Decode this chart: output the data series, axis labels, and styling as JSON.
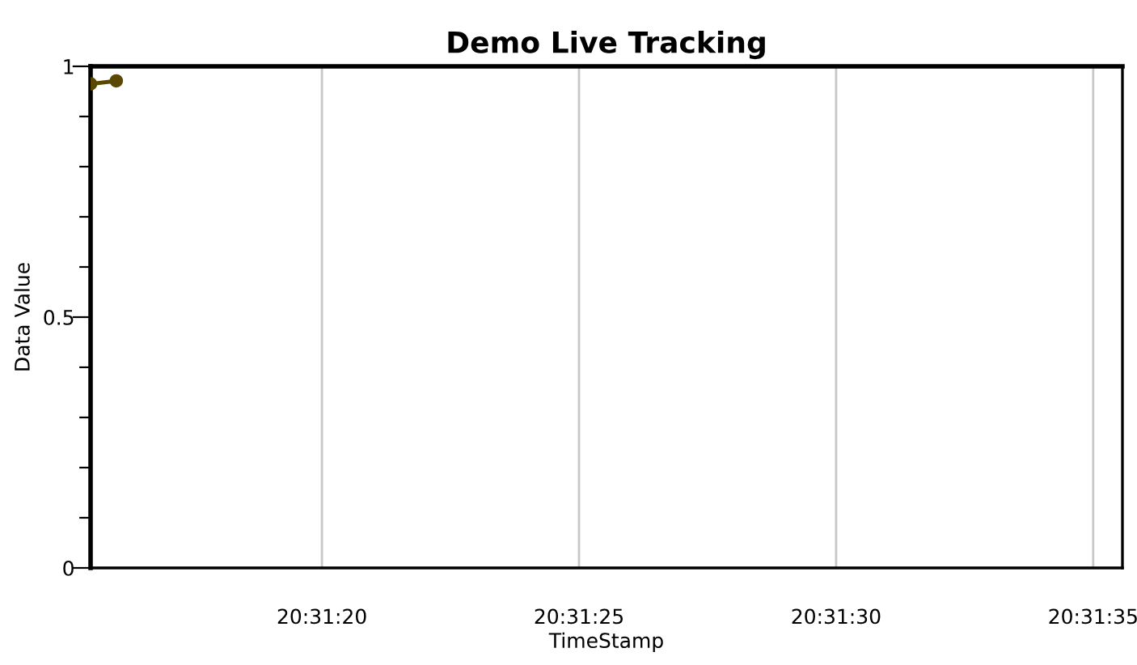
{
  "chart_data": {
    "type": "line",
    "title": "Demo Live Tracking",
    "xlabel": "TimeStamp",
    "ylabel": "Data Value",
    "x": [
      20.520972,
      20.521111
    ],
    "series": [
      {
        "color": "#5a4800",
        "values": [
          0.965,
          0.971
        ]
      }
    ],
    "marker": "circle",
    "line_style": "solid",
    "grid": "x",
    "xlim": [
      20.520972,
      20.526547
    ],
    "xticks": [
      {
        "value": 20.522222,
        "label": "20:31:20"
      },
      {
        "value": 20.523611,
        "label": "20:31:25"
      },
      {
        "value": 20.525,
        "label": "20:31:30"
      },
      {
        "value": 20.526389,
        "label": "20:31:35"
      }
    ],
    "ylim": [
      0,
      1
    ],
    "yticks": [
      0,
      {
        "value": 0.1,
        "label": null
      },
      {
        "value": 0.2,
        "label": null
      },
      {
        "value": 0.3,
        "label": null
      },
      {
        "value": 0.4,
        "label": null
      },
      0.5,
      {
        "value": 0.6,
        "label": null
      },
      {
        "value": 0.7,
        "label": null
      },
      {
        "value": 0.8,
        "label": null
      },
      {
        "value": 0.9,
        "label": null
      },
      1
    ]
  }
}
